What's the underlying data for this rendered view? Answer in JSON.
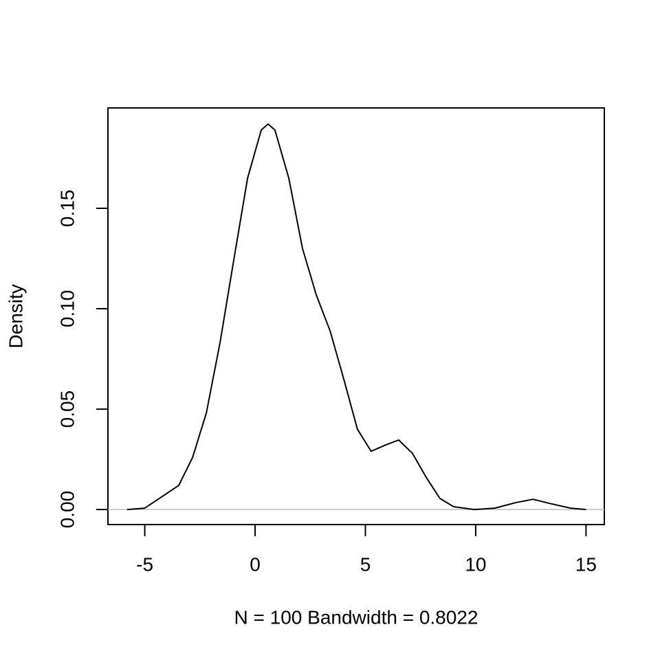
{
  "chart_data": {
    "type": "line",
    "x_label": "N = 100   Bandwidth = 0.8022",
    "y_label": "Density",
    "x": [
      -5.8,
      -5,
      -3.46,
      -2.83,
      -2.21,
      -1.59,
      -0.97,
      -0.34,
      0.28,
      0.59,
      0.9,
      1.53,
      2.15,
      2.77,
      3.4,
      4.02,
      4.64,
      5.26,
      5.89,
      6.51,
      7.13,
      7.76,
      8.38,
      9.0,
      9.94,
      10.87,
      11.8,
      12.6,
      13.36,
      14.3,
      15.0
    ],
    "series": [
      {
        "color": "#000000",
        "values": [
          0.0,
          0.0007,
          0.012,
          0.026,
          0.048,
          0.083,
          0.124,
          0.165,
          0.189,
          0.192,
          0.189,
          0.165,
          0.13,
          0.107,
          0.089,
          0.065,
          0.04,
          0.029,
          0.032,
          0.0346,
          0.028,
          0.016,
          0.0055,
          0.0014,
          0.0,
          0.0007,
          0.0034,
          0.0051,
          0.003,
          0.0007,
          0.0
        ]
      }
    ],
    "xlim": [
      -6.67,
      15.83
    ],
    "ylim": [
      -0.0075,
      0.2
    ],
    "xticks": [
      -5,
      0,
      5,
      10,
      15
    ],
    "yticks": [
      {
        "value": 0,
        "label": "0.00"
      },
      {
        "value": 0.05,
        "label": "0.05"
      },
      {
        "value": 0.1,
        "label": "0.10"
      },
      {
        "value": 0.15,
        "label": "0.15"
      }
    ],
    "zero_line": true,
    "zero_line_color": "#bebebe"
  }
}
